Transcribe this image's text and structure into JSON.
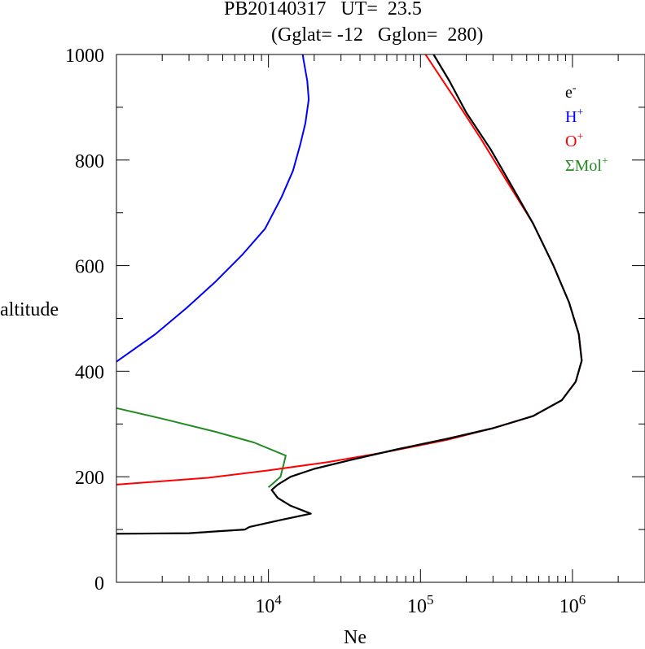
{
  "chart_data": {
    "type": "line",
    "title_line1": "PB20140317   UT=  23.5",
    "title_line2": "(Gglat= -12   Gglon=  280)",
    "xlabel": "Ne",
    "ylabel": "altitude",
    "xscale": "log",
    "xlim": [
      1000,
      3000000
    ],
    "ylim": [
      0,
      1000
    ],
    "yticks": [
      "0",
      "200",
      "400",
      "600",
      "800",
      "1000"
    ],
    "xticks": [
      {
        "base": "10",
        "exp": "4",
        "value": 10000
      },
      {
        "base": "10",
        "exp": "5",
        "value": 100000
      },
      {
        "base": "10",
        "exp": "6",
        "value": 1000000
      }
    ],
    "legend_position": "top-right",
    "series": [
      {
        "name": "e",
        "sup": "-",
        "color": "#000000",
        "points": [
          [
            1000,
            92
          ],
          [
            3000,
            93
          ],
          [
            7000,
            100
          ],
          [
            7500,
            105
          ],
          [
            12000,
            118
          ],
          [
            19000,
            130
          ],
          [
            14000,
            145
          ],
          [
            11500,
            160
          ],
          [
            10500,
            175
          ],
          [
            11500,
            185
          ],
          [
            14000,
            200
          ],
          [
            20000,
            215
          ],
          [
            35000,
            232
          ],
          [
            70000,
            252
          ],
          [
            150000,
            272
          ],
          [
            300000,
            292
          ],
          [
            550000,
            315
          ],
          [
            850000,
            345
          ],
          [
            1050000,
            380
          ],
          [
            1150000,
            420
          ],
          [
            1100000,
            470
          ],
          [
            950000,
            530
          ],
          [
            750000,
            600
          ],
          [
            550000,
            680
          ],
          [
            400000,
            750
          ],
          [
            290000,
            820
          ],
          [
            200000,
            890
          ],
          [
            155000,
            950
          ],
          [
            122000,
            1000
          ]
        ]
      },
      {
        "name": "H",
        "sup": "+",
        "color": "#0000ff",
        "points": [
          [
            1000,
            418
          ],
          [
            1800,
            470
          ],
          [
            2900,
            520
          ],
          [
            4500,
            570
          ],
          [
            6700,
            620
          ],
          [
            9500,
            670
          ],
          [
            12200,
            730
          ],
          [
            14500,
            780
          ],
          [
            16200,
            830
          ],
          [
            17500,
            870
          ],
          [
            18400,
            915
          ],
          [
            18000,
            950
          ],
          [
            17000,
            990
          ],
          [
            16800,
            1000
          ]
        ]
      },
      {
        "name": "O",
        "sup": "+",
        "color": "#ff0000",
        "points": [
          [
            1000,
            185
          ],
          [
            4000,
            198
          ],
          [
            10000,
            212
          ],
          [
            25000,
            228
          ],
          [
            60000,
            247
          ],
          [
            150000,
            270
          ],
          [
            300000,
            292
          ],
          [
            550000,
            315
          ],
          [
            850000,
            345
          ],
          [
            1050000,
            380
          ],
          [
            1150000,
            420
          ],
          [
            1100000,
            470
          ],
          [
            950000,
            530
          ],
          [
            750000,
            600
          ],
          [
            550000,
            680
          ],
          [
            370000,
            760
          ],
          [
            250000,
            840
          ],
          [
            165000,
            920
          ],
          [
            108000,
            1000
          ]
        ]
      },
      {
        "name": "ΣMol",
        "sup": "+",
        "color": "#228b22",
        "points": [
          [
            1000,
            330
          ],
          [
            2000,
            310
          ],
          [
            4500,
            285
          ],
          [
            8000,
            265
          ],
          [
            13000,
            240
          ],
          [
            12500,
            220
          ],
          [
            12000,
            200
          ],
          [
            10500,
            185
          ],
          [
            10000,
            180
          ]
        ]
      }
    ]
  }
}
